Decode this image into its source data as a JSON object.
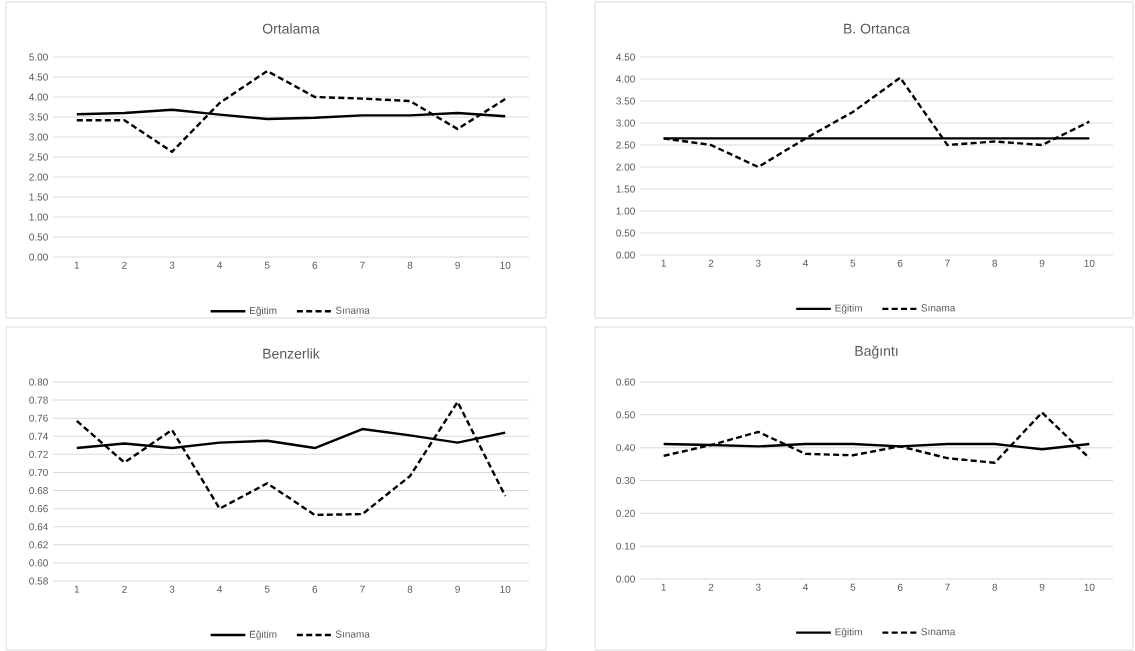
{
  "chart_data": [
    {
      "type": "line",
      "title": "Ortalama",
      "categories": [
        "1",
        "2",
        "3",
        "4",
        "5",
        "6",
        "7",
        "8",
        "9",
        "10"
      ],
      "ylim": [
        0,
        5
      ],
      "yticks": [
        {
          "value": 0,
          "label": "0.00"
        },
        {
          "value": 0.5,
          "label": "0.50"
        },
        {
          "value": 1,
          "label": "1.00"
        },
        {
          "value": 1.5,
          "label": "1.50"
        },
        {
          "value": 2,
          "label": "2.00"
        },
        {
          "value": 2.5,
          "label": "2.50"
        },
        {
          "value": 3,
          "label": "3.00"
        },
        {
          "value": 3.5,
          "label": "3.50"
        },
        {
          "value": 4,
          "label": "4.00"
        },
        {
          "value": 4.5,
          "label": "4.50"
        },
        {
          "value": 5,
          "label": "5.00"
        }
      ],
      "grid": "y",
      "legend": "bottom",
      "series": [
        {
          "name": "Eğitim",
          "color": "#000000",
          "line_style": "solid",
          "values": [
            3.57,
            3.6,
            3.68,
            3.56,
            3.45,
            3.48,
            3.54,
            3.54,
            3.6,
            3.52
          ]
        },
        {
          "name": "Sınama",
          "color": "#000000",
          "line_style": "dashed",
          "values": [
            3.42,
            3.42,
            2.63,
            3.85,
            4.65,
            4.0,
            3.96,
            3.9,
            3.2,
            3.95
          ]
        }
      ]
    },
    {
      "type": "line",
      "title": "B. Ortanca",
      "categories": [
        "1",
        "2",
        "3",
        "4",
        "5",
        "6",
        "7",
        "8",
        "9",
        "10"
      ],
      "ylim": [
        0,
        4.5
      ],
      "yticks": [
        {
          "value": 0,
          "label": "0.00"
        },
        {
          "value": 0.5,
          "label": "0.50"
        },
        {
          "value": 1,
          "label": "1.00"
        },
        {
          "value": 1.5,
          "label": "1.50"
        },
        {
          "value": 2,
          "label": "2.00"
        },
        {
          "value": 2.5,
          "label": "2.50"
        },
        {
          "value": 3,
          "label": "3.00"
        },
        {
          "value": 3.5,
          "label": "3.50"
        },
        {
          "value": 4,
          "label": "4.00"
        },
        {
          "value": 4.5,
          "label": "4.50"
        }
      ],
      "grid": "y",
      "legend": "bottom",
      "series": [
        {
          "name": "Eğitim",
          "color": "#000000",
          "line_style": "solid",
          "values": [
            2.65,
            2.65,
            2.65,
            2.65,
            2.65,
            2.65,
            2.65,
            2.65,
            2.65,
            2.65
          ]
        },
        {
          "name": "Sınama",
          "color": "#000000",
          "line_style": "dashed",
          "values": [
            2.65,
            2.5,
            2.0,
            2.65,
            3.25,
            4.03,
            2.5,
            2.58,
            2.5,
            3.03
          ]
        }
      ]
    },
    {
      "type": "line",
      "title": "Benzerlik",
      "categories": [
        "1",
        "2",
        "3",
        "4",
        "5",
        "6",
        "7",
        "8",
        "9",
        "10"
      ],
      "ylim": [
        0.58,
        0.8
      ],
      "yticks": [
        {
          "value": 0.58,
          "label": "0.58"
        },
        {
          "value": 0.6,
          "label": "0.60"
        },
        {
          "value": 0.62,
          "label": "0.62"
        },
        {
          "value": 0.64,
          "label": "0.64"
        },
        {
          "value": 0.66,
          "label": "0.66"
        },
        {
          "value": 0.68,
          "label": "0.68"
        },
        {
          "value": 0.7,
          "label": "0.70"
        },
        {
          "value": 0.72,
          "label": "0.72"
        },
        {
          "value": 0.74,
          "label": "0.74"
        },
        {
          "value": 0.76,
          "label": "0.76"
        },
        {
          "value": 0.78,
          "label": "0.78"
        },
        {
          "value": 0.8,
          "label": "0.80"
        }
      ],
      "grid": "y",
      "legend": "bottom",
      "series": [
        {
          "name": "Eğitim",
          "color": "#000000",
          "line_style": "solid",
          "values": [
            0.727,
            0.732,
            0.727,
            0.733,
            0.735,
            0.727,
            0.748,
            0.741,
            0.733,
            0.744
          ]
        },
        {
          "name": "Sınama",
          "color": "#000000",
          "line_style": "dashed",
          "values": [
            0.757,
            0.711,
            0.747,
            0.66,
            0.688,
            0.653,
            0.654,
            0.696,
            0.778,
            0.674
          ]
        }
      ]
    },
    {
      "type": "line",
      "title": "Bağıntı",
      "categories": [
        "1",
        "2",
        "3",
        "4",
        "5",
        "6",
        "7",
        "8",
        "9",
        "10"
      ],
      "ylim": [
        0,
        0.6
      ],
      "yticks": [
        {
          "value": 0,
          "label": "0.00"
        },
        {
          "value": 0.1,
          "label": "0.10"
        },
        {
          "value": 0.2,
          "label": "0.20"
        },
        {
          "value": 0.3,
          "label": "0.30"
        },
        {
          "value": 0.4,
          "label": "0.40"
        },
        {
          "value": 0.5,
          "label": "0.50"
        },
        {
          "value": 0.6,
          "label": "0.60"
        }
      ],
      "grid": "y",
      "legend": "bottom",
      "series": [
        {
          "name": "Eğitim",
          "color": "#000000",
          "line_style": "solid",
          "values": [
            0.411,
            0.408,
            0.404,
            0.411,
            0.411,
            0.404,
            0.411,
            0.411,
            0.395,
            0.411
          ]
        },
        {
          "name": "Sınama",
          "color": "#000000",
          "line_style": "dashed",
          "values": [
            0.375,
            0.408,
            0.448,
            0.381,
            0.377,
            0.404,
            0.368,
            0.354,
            0.507,
            0.368
          ]
        }
      ]
    }
  ]
}
